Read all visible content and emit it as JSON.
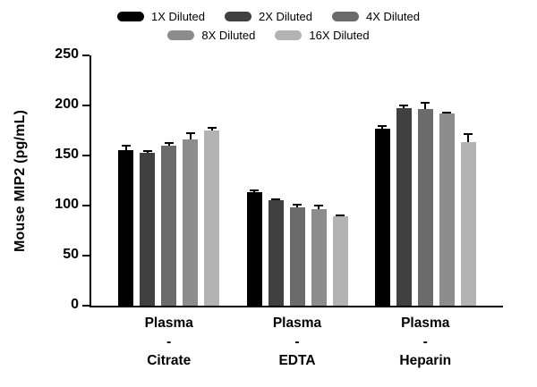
{
  "chart_data": {
    "type": "bar",
    "title": "",
    "xlabel": "",
    "ylabel": "Mouse MIP2 (pg/mL)",
    "ylim": [
      0,
      250
    ],
    "yticks": [
      0,
      50,
      100,
      150,
      200,
      250
    ],
    "grid": false,
    "legend_position": "top",
    "categories": [
      "Plasma -\nCitrate",
      "Plasma -\nEDTA",
      "Plasma -\nHeparin"
    ],
    "series": [
      {
        "name": "1X Diluted",
        "color": "#000000",
        "values": [
          155,
          113,
          177
        ],
        "errors": [
          6,
          3,
          3
        ]
      },
      {
        "name": "2X Diluted",
        "color": "#404040",
        "values": [
          153,
          105,
          197
        ],
        "errors": [
          2,
          2,
          4
        ]
      },
      {
        "name": "4X Diluted",
        "color": "#6b6b6b",
        "values": [
          160,
          98,
          196
        ],
        "errors": [
          3,
          4,
          8
        ]
      },
      {
        "name": "8X Diluted",
        "color": "#8c8c8c",
        "values": [
          166,
          96,
          192
        ],
        "errors": [
          7,
          5,
          2
        ]
      },
      {
        "name": "16X Diluted",
        "color": "#b3b3b3",
        "values": [
          175,
          89,
          163
        ],
        "errors": [
          4,
          2,
          9
        ]
      }
    ]
  }
}
